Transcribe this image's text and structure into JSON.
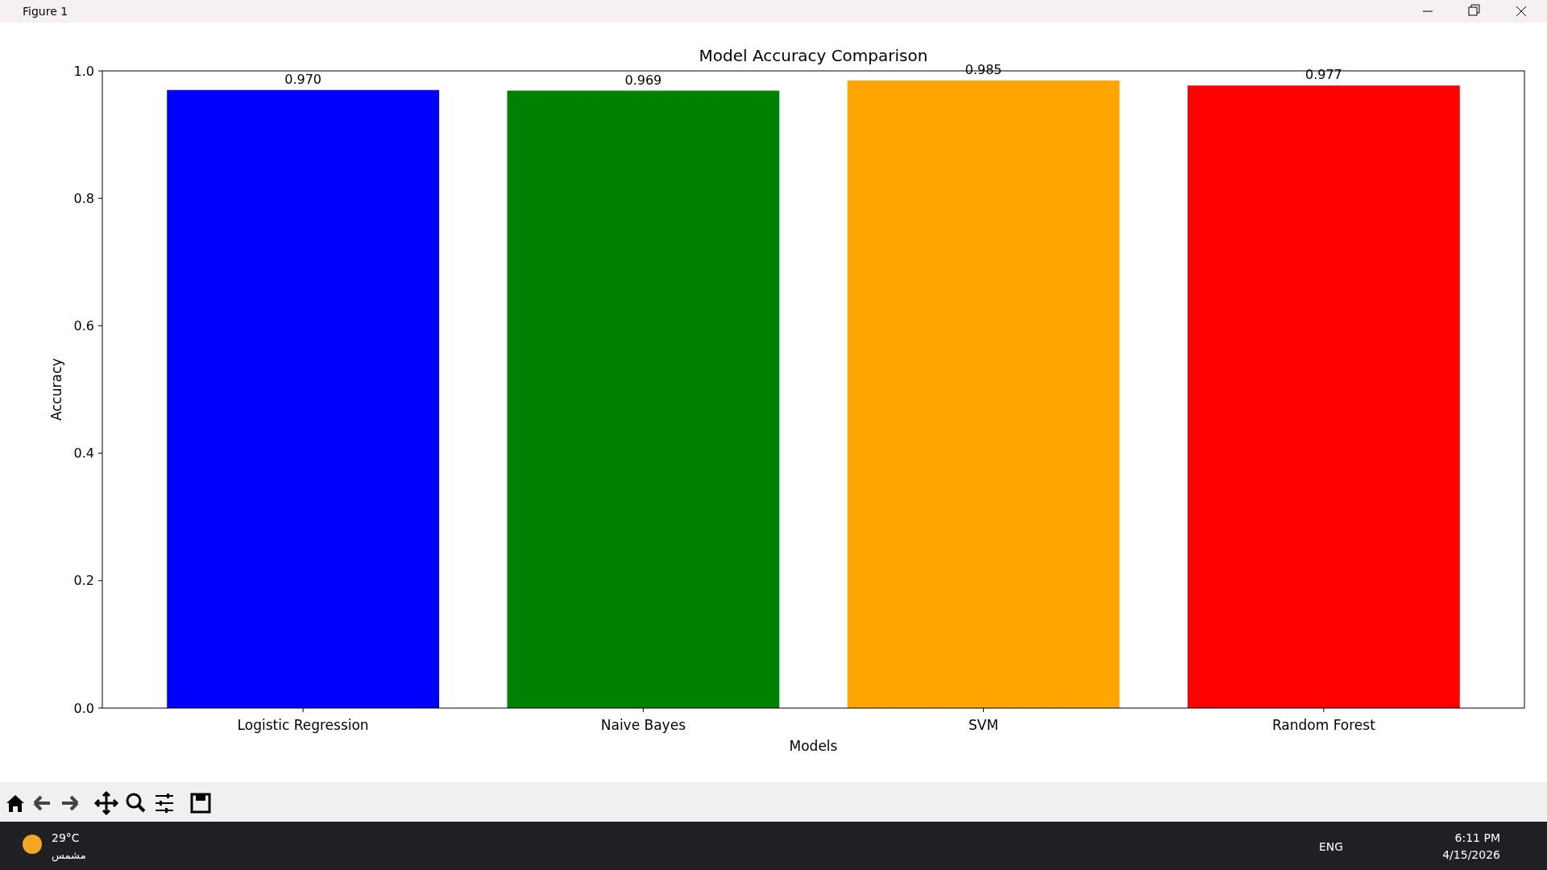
{
  "chart_data": {
    "type": "bar",
    "title": "Model Accuracy Comparison",
    "xlabel": "Models",
    "ylabel": "Accuracy",
    "categories": [
      "Logistic Regression",
      "Naive Bayes",
      "SVM",
      "Random Forest"
    ],
    "values": [
      0.97,
      0.969,
      0.985,
      0.977
    ],
    "colors": [
      "#0000ff",
      "#008000",
      "#ffa500",
      "#ff0000"
    ],
    "value_labels": [
      "0.970",
      "0.969",
      "0.985",
      "0.977"
    ],
    "ylim": [
      0,
      1
    ],
    "yticks": [
      {
        "value": 0,
        "label": "0.0"
      },
      {
        "value": 0.2,
        "label": "0.2"
      },
      {
        "value": 0.4,
        "label": "0.4"
      },
      {
        "value": 0.6,
        "label": "0.6"
      },
      {
        "value": 0.8,
        "label": "0.8"
      },
      {
        "value": 1,
        "label": "1.0"
      }
    ],
    "annotations": [
      "Figure 1",
      "29°C",
      "مشمس",
      "ENG",
      "6:11 PM",
      "4/15/2026"
    ]
  }
}
